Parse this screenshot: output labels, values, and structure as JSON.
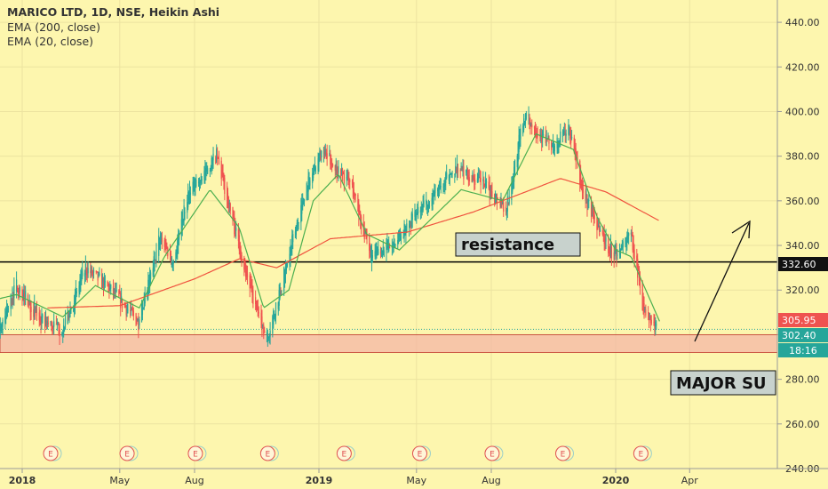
{
  "header": {
    "title": "MARICO LTD, 1D, NSE, Heikin Ashi",
    "indicators": [
      "EMA (200, close)",
      "EMA (20, close)"
    ]
  },
  "annotations": {
    "resistance_label": "resistance",
    "support_label": "MAJOR SU",
    "resistance_level": 332.6,
    "support_zone": [
      292,
      300
    ]
  },
  "price_tags": {
    "resistance": "332.60",
    "ema20": "305.95",
    "last": "302.40",
    "countdown": "18:16"
  },
  "event_marker_label": "E",
  "colors": {
    "background": "#fdf6ae",
    "up": "#26a69a",
    "down": "#ef5350",
    "ema20": "#4caf50",
    "ema200": "#f0523e",
    "zone_fill": "#f4b6a6",
    "zone_border": "#c0392b",
    "resistance_line": "#000000",
    "last_tag": "#26a69a",
    "ema20_tag": "#ef5350"
  },
  "chart_data": {
    "type": "candlestick",
    "title": "MARICO LTD, 1D, NSE, Heikin Ashi",
    "y_axis": {
      "min": 240,
      "max": 450,
      "position": "right",
      "ticks": [
        "440.00",
        "420.00",
        "400.00",
        "380.00",
        "360.00",
        "340.00",
        "320.00",
        "300.00",
        "280.00",
        "260.00",
        "240.00"
      ]
    },
    "x_axis": {
      "ticks": [
        {
          "label": "2018",
          "bold": true,
          "date": "2018-01-01"
        },
        {
          "label": "May",
          "bold": false,
          "date": "2018-05-01"
        },
        {
          "label": "Aug",
          "bold": false,
          "date": "2018-08-01"
        },
        {
          "label": "2019",
          "bold": true,
          "date": "2019-01-01"
        },
        {
          "label": "May",
          "bold": false,
          "date": "2019-05-01"
        },
        {
          "label": "Aug",
          "bold": false,
          "date": "2019-08-01"
        },
        {
          "label": "2020",
          "bold": true,
          "date": "2020-01-01"
        },
        {
          "label": "Apr",
          "bold": false,
          "date": "2020-04-01"
        }
      ]
    },
    "price_anchors": [
      {
        "date": "2017-11-10",
        "price": 312
      },
      {
        "date": "2017-12-05",
        "price": 303
      },
      {
        "date": "2017-12-25",
        "price": 322
      },
      {
        "date": "2018-01-25",
        "price": 306
      },
      {
        "date": "2018-02-20",
        "price": 302
      },
      {
        "date": "2018-03-20",
        "price": 330
      },
      {
        "date": "2018-04-25",
        "price": 318
      },
      {
        "date": "2018-05-25",
        "price": 305
      },
      {
        "date": "2018-06-20",
        "price": 345
      },
      {
        "date": "2018-07-05",
        "price": 332
      },
      {
        "date": "2018-07-25",
        "price": 365
      },
      {
        "date": "2018-08-28",
        "price": 380
      },
      {
        "date": "2018-09-28",
        "price": 335
      },
      {
        "date": "2018-10-20",
        "price": 305
      },
      {
        "date": "2018-10-30",
        "price": 300
      },
      {
        "date": "2018-11-20",
        "price": 328
      },
      {
        "date": "2018-12-15",
        "price": 365
      },
      {
        "date": "2019-01-05",
        "price": 382
      },
      {
        "date": "2019-02-10",
        "price": 367
      },
      {
        "date": "2019-03-05",
        "price": 335
      },
      {
        "date": "2019-04-01",
        "price": 340
      },
      {
        "date": "2019-05-10",
        "price": 358
      },
      {
        "date": "2019-06-20",
        "price": 375
      },
      {
        "date": "2019-07-20",
        "price": 368
      },
      {
        "date": "2019-08-20",
        "price": 357
      },
      {
        "date": "2019-09-10",
        "price": 398
      },
      {
        "date": "2019-10-15",
        "price": 384
      },
      {
        "date": "2019-11-05",
        "price": 392
      },
      {
        "date": "2019-11-20",
        "price": 365
      },
      {
        "date": "2019-12-15",
        "price": 345
      },
      {
        "date": "2019-12-30",
        "price": 335
      },
      {
        "date": "2020-01-20",
        "price": 345
      },
      {
        "date": "2020-02-05",
        "price": 310
      },
      {
        "date": "2020-02-20",
        "price": 302
      }
    ],
    "ema20_anchors": [
      {
        "date": "2017-11-10",
        "price": 314
      },
      {
        "date": "2017-12-25",
        "price": 318
      },
      {
        "date": "2018-02-20",
        "price": 308
      },
      {
        "date": "2018-04-01",
        "price": 322
      },
      {
        "date": "2018-05-25",
        "price": 312
      },
      {
        "date": "2018-06-25",
        "price": 335
      },
      {
        "date": "2018-08-20",
        "price": 365
      },
      {
        "date": "2018-09-25",
        "price": 348
      },
      {
        "date": "2018-10-25",
        "price": 312
      },
      {
        "date": "2018-11-25",
        "price": 320
      },
      {
        "date": "2018-12-25",
        "price": 360
      },
      {
        "date": "2019-01-25",
        "price": 372
      },
      {
        "date": "2019-03-01",
        "price": 345
      },
      {
        "date": "2019-04-10",
        "price": 338
      },
      {
        "date": "2019-06-25",
        "price": 365
      },
      {
        "date": "2019-08-15",
        "price": 360
      },
      {
        "date": "2019-09-25",
        "price": 390
      },
      {
        "date": "2019-11-10",
        "price": 383
      },
      {
        "date": "2019-12-10",
        "price": 352
      },
      {
        "date": "2020-01-01",
        "price": 338
      },
      {
        "date": "2020-01-20",
        "price": 335
      },
      {
        "date": "2020-02-24",
        "price": 306
      }
    ],
    "ema200_anchors": [
      {
        "date": "2018-02-01",
        "price": 312
      },
      {
        "date": "2018-05-01",
        "price": 313
      },
      {
        "date": "2018-08-01",
        "price": 325
      },
      {
        "date": "2018-09-25",
        "price": 334
      },
      {
        "date": "2018-11-10",
        "price": 330
      },
      {
        "date": "2019-01-15",
        "price": 343
      },
      {
        "date": "2019-04-20",
        "price": 346
      },
      {
        "date": "2019-07-10",
        "price": 355
      },
      {
        "date": "2019-10-25",
        "price": 370
      },
      {
        "date": "2019-12-20",
        "price": 364
      },
      {
        "date": "2020-02-24",
        "price": 351
      }
    ],
    "earnings_dates": [
      "2018-02-05",
      "2018-05-10",
      "2018-08-02",
      "2018-10-30",
      "2019-02-01",
      "2019-05-05",
      "2019-08-02",
      "2019-10-28",
      "2020-02-01"
    ]
  }
}
